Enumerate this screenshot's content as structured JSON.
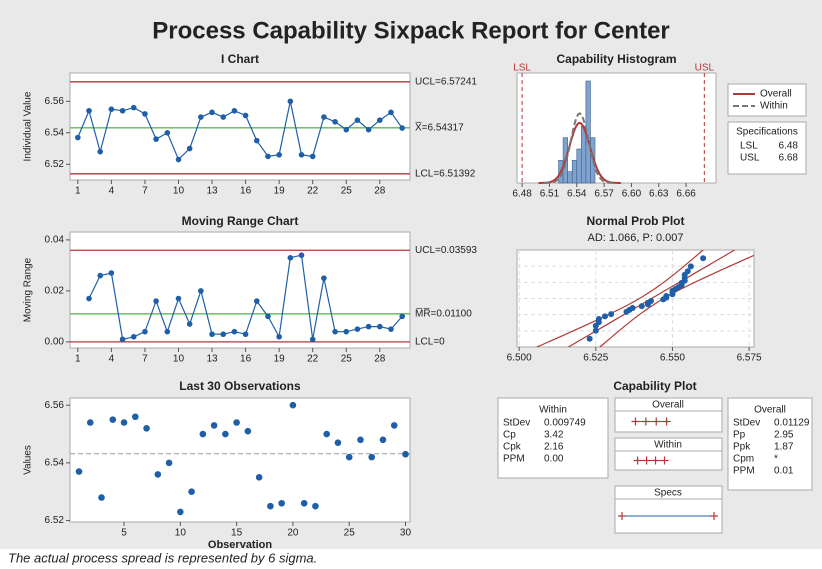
{
  "title": "Process Capability Sixpack Report for Center",
  "footnote": "The actual process spread is represented by 6 sigma.",
  "chart_data": [
    {
      "type": "line",
      "title": "I Chart",
      "y_label": "Individual Value",
      "x": [
        1,
        2,
        3,
        4,
        5,
        6,
        7,
        8,
        9,
        10,
        11,
        12,
        13,
        14,
        15,
        16,
        17,
        18,
        19,
        20,
        21,
        22,
        23,
        24,
        25,
        26,
        27,
        28,
        29,
        30
      ],
      "values": [
        6.537,
        6.554,
        6.528,
        6.555,
        6.554,
        6.556,
        6.552,
        6.536,
        6.54,
        6.523,
        6.53,
        6.55,
        6.553,
        6.55,
        6.554,
        6.551,
        6.535,
        6.525,
        6.526,
        6.56,
        6.526,
        6.525,
        6.55,
        6.547,
        6.542,
        6.548,
        6.542,
        6.548,
        6.553,
        6.543
      ],
      "color": "#1f5fa8",
      "xlim": [
        0.3,
        30.7
      ],
      "xticks": [
        1,
        4,
        7,
        10,
        13,
        16,
        19,
        22,
        25,
        28
      ],
      "ylim": [
        6.51,
        6.578
      ],
      "yticks": [
        6.52,
        6.54,
        6.56
      ],
      "limits": [
        {
          "value": 6.57241,
          "label": "UCL=6.57241",
          "color": "#b03a3a"
        },
        {
          "value": 6.54317,
          "label": "X̅=6.54317",
          "color": "#5cb85c"
        },
        {
          "value": 6.51392,
          "label": "LCL=6.51392",
          "color": "#b03a3a"
        }
      ]
    },
    {
      "type": "line",
      "title": "Moving Range Chart",
      "y_label": "Moving Range",
      "x": [
        1,
        2,
        3,
        4,
        5,
        6,
        7,
        8,
        9,
        10,
        11,
        12,
        13,
        14,
        15,
        16,
        17,
        18,
        19,
        20,
        21,
        22,
        23,
        24,
        25,
        26,
        27,
        28,
        29,
        30
      ],
      "values": [
        null,
        0.017,
        0.026,
        0.027,
        0.001,
        0.002,
        0.004,
        0.016,
        0.004,
        0.017,
        0.007,
        0.02,
        0.003,
        0.003,
        0.004,
        0.003,
        0.016,
        0.01,
        0.002,
        0.033,
        0.034,
        0.001,
        0.025,
        0.004,
        0.004,
        0.005,
        0.006,
        0.006,
        0.005,
        0.01
      ],
      "color": "#1f5fa8",
      "xlim": [
        0.3,
        30.7
      ],
      "xticks": [
        1,
        4,
        7,
        10,
        13,
        16,
        19,
        22,
        25,
        28
      ],
      "ylim": [
        -0.0024,
        0.0431
      ],
      "yticks": [
        {
          "value": 0,
          "label": "0.00"
        },
        0.02,
        0.04
      ],
      "limits": [
        {
          "value": 0.03593,
          "label": "UCL=0.03593",
          "color": "#b03a3a"
        },
        {
          "value": 0.011,
          "label": "M̅R̅=0.01100",
          "color": "#5cb85c"
        },
        {
          "value": 0,
          "label": "LCL=0",
          "color": "#b03a3a"
        }
      ]
    },
    {
      "type": "scatter",
      "title": "Last 30 Observations",
      "x_label": "Observation",
      "y_label": "Values",
      "x": [
        1,
        2,
        3,
        4,
        5,
        6,
        7,
        8,
        9,
        10,
        11,
        12,
        13,
        14,
        15,
        16,
        17,
        18,
        19,
        20,
        21,
        22,
        23,
        24,
        25,
        26,
        27,
        28,
        29,
        30
      ],
      "values": [
        6.537,
        6.554,
        6.528,
        6.555,
        6.554,
        6.556,
        6.552,
        6.536,
        6.54,
        6.523,
        6.53,
        6.55,
        6.553,
        6.55,
        6.554,
        6.551,
        6.535,
        6.525,
        6.526,
        6.56,
        6.526,
        6.525,
        6.55,
        6.547,
        6.542,
        6.548,
        6.542,
        6.548,
        6.553,
        6.543
      ],
      "color": "#1f5fa8",
      "xlim": [
        0.2,
        30.4
      ],
      "xticks": [
        5,
        10,
        15,
        20,
        25,
        30
      ],
      "ylim": [
        6.5195,
        6.5625
      ],
      "yticks": [
        6.52,
        6.54,
        6.56
      ],
      "reference_line": 6.54317
    },
    {
      "type": "histogram",
      "title": "Capability Histogram",
      "bins": [
        6.52,
        6.525,
        6.53,
        6.535,
        6.54,
        6.545,
        6.55,
        6.555,
        6.56
      ],
      "counts": [
        2,
        4,
        1,
        2,
        3,
        5,
        9,
        4
      ],
      "color": "#7fa3cf",
      "xlim": [
        6.4744,
        6.6928
      ],
      "xticks": [
        6.48,
        6.51,
        6.54,
        6.57,
        {
          "value": 6.6,
          "label": "6.60"
        },
        6.63,
        6.66
      ],
      "mean": 6.54317,
      "spec_lines": [
        {
          "value": 6.48,
          "label": "LSL"
        },
        {
          "value": 6.68,
          "label": "USL"
        }
      ],
      "series": [
        {
          "name": "Overall",
          "color": "#b03a3a",
          "stdev": 0.01129
        },
        {
          "name": "Within",
          "color": "#777777",
          "stdev": 0.009749
        }
      ],
      "specifications": {
        "title": "Specifications",
        "rows": [
          [
            "LSL",
            6.48
          ],
          [
            "USL",
            6.68
          ]
        ]
      }
    },
    {
      "type": "probability",
      "title": "Normal Prob Plot",
      "subtitle": "AD: 1.066, P: 0.007",
      "values": [
        6.537,
        6.554,
        6.528,
        6.555,
        6.554,
        6.556,
        6.552,
        6.536,
        6.54,
        6.523,
        6.53,
        6.55,
        6.553,
        6.55,
        6.554,
        6.551,
        6.535,
        6.525,
        6.526,
        6.56,
        6.526,
        6.525,
        6.55,
        6.547,
        6.542,
        6.548,
        6.542,
        6.548,
        6.553,
        6.543
      ],
      "color": "#1f5fa8",
      "xlim": [
        6.4993,
        6.5766
      ],
      "xticks": [
        {
          "value": 6.5,
          "label": "6.500"
        },
        6.525,
        {
          "value": 6.55,
          "label": "6.550"
        },
        6.575
      ],
      "grid": true,
      "fit": {
        "mean": 6.54317,
        "stdev": 0.01129,
        "color": "#b03a3a"
      }
    },
    {
      "type": "capability",
      "title": "Capability Plot",
      "within": {
        "title": "Within",
        "rows": [
          [
            "StDev",
            0.009749
          ],
          [
            "Cp",
            3.42
          ],
          [
            "Cpk",
            2.16
          ],
          [
            "PPM",
            "0.00"
          ]
        ]
      },
      "overall": {
        "title": "Overall",
        "rows": [
          [
            "StDev",
            0.01129
          ],
          [
            "Pp",
            2.95
          ],
          [
            "Ppk",
            1.87
          ],
          [
            "Cpm",
            "*"
          ],
          [
            "PPM",
            0.01
          ]
        ]
      },
      "intervals": [
        {
          "name": "Overall",
          "stdev": 0.01129
        },
        {
          "name": "Within",
          "stdev": 0.009749
        },
        {
          "name": "Specs"
        }
      ],
      "mean": 6.54317,
      "lsl": 6.48,
      "usl": 6.68
    }
  ]
}
